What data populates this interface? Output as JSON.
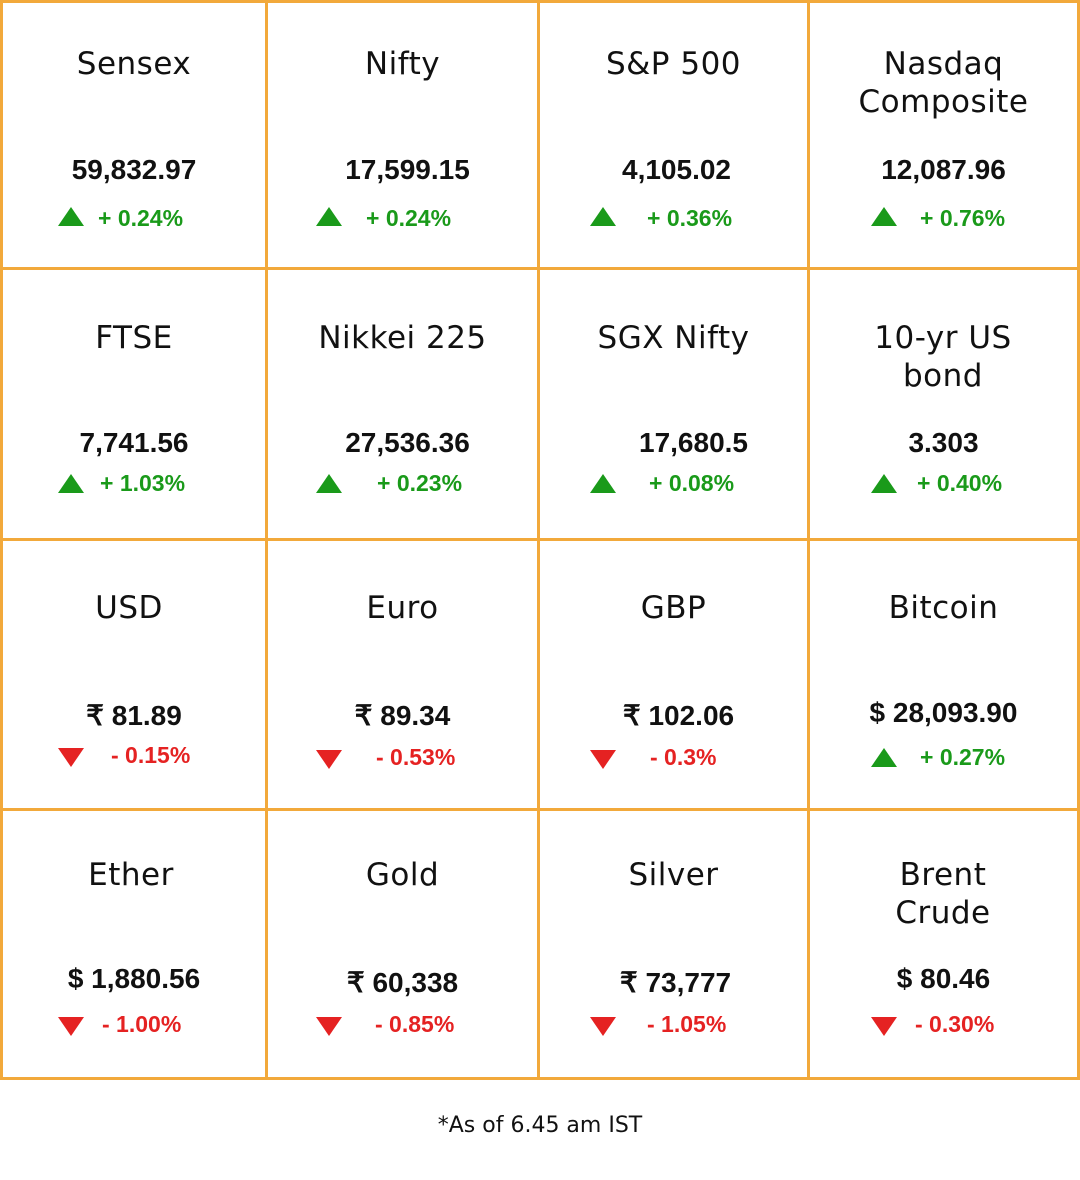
{
  "accents": {
    "grid": "#f2a93b",
    "up": "#1a9a1a",
    "down": "#e52222"
  },
  "cells": [
    {
      "name": "Sensex",
      "value": "59,832.97",
      "change": "+ 0.24%",
      "direction": "up",
      "icon": "triangle-up-icon"
    },
    {
      "name": "Nifty",
      "value": "17,599.15",
      "change": "+ 0.24%",
      "direction": "up",
      "icon": "triangle-up-icon"
    },
    {
      "name": "S&P 500",
      "value": "4,105.02",
      "change": "+ 0.36%",
      "direction": "up",
      "icon": "triangle-up-icon"
    },
    {
      "name": "Nasdaq Composite",
      "value": "12,087.96",
      "change": "+ 0.76%",
      "direction": "up",
      "icon": "triangle-up-icon"
    },
    {
      "name": "FTSE",
      "value": "7,741.56",
      "change": "+ 1.03%",
      "direction": "up",
      "icon": "triangle-up-icon"
    },
    {
      "name": "Nikkei 225",
      "value": "27,536.36",
      "change": "+ 0.23%",
      "direction": "up",
      "icon": "triangle-up-icon"
    },
    {
      "name": "SGX Nifty",
      "value": "17,680.5",
      "change": "+ 0.08%",
      "direction": "up",
      "icon": "triangle-up-icon"
    },
    {
      "name": "10-yr US bond",
      "value": "3.303",
      "change": "+ 0.40%",
      "direction": "up",
      "icon": "triangle-up-icon"
    },
    {
      "name": "USD",
      "value": "₹ 81.89",
      "change": "- 0.15%",
      "direction": "down",
      "icon": "triangle-down-icon"
    },
    {
      "name": "Euro",
      "value": "₹ 89.34",
      "change": "- 0.53%",
      "direction": "down",
      "icon": "triangle-down-icon"
    },
    {
      "name": "GBP",
      "value": "₹ 102.06",
      "change": "- 0.3%",
      "direction": "down",
      "icon": "triangle-down-icon"
    },
    {
      "name": "Bitcoin",
      "value": "$ 28,093.90",
      "change": "+ 0.27%",
      "direction": "up",
      "icon": "triangle-up-icon"
    },
    {
      "name": "Ether",
      "value": "$ 1,880.56",
      "change": "- 1.00%",
      "direction": "down",
      "icon": "triangle-down-icon"
    },
    {
      "name": "Gold",
      "value": "₹ 60,338",
      "change": "- 0.85%",
      "direction": "down",
      "icon": "triangle-down-icon"
    },
    {
      "name": "Silver",
      "value": "₹ 73,777",
      "change": "- 1.05%",
      "direction": "down",
      "icon": "triangle-down-icon"
    },
    {
      "name": "Brent Crude",
      "value": "$ 80.46",
      "change": "- 0.30%",
      "direction": "down",
      "icon": "triangle-down-icon"
    }
  ],
  "footnote": "*As of 6.45 am IST"
}
